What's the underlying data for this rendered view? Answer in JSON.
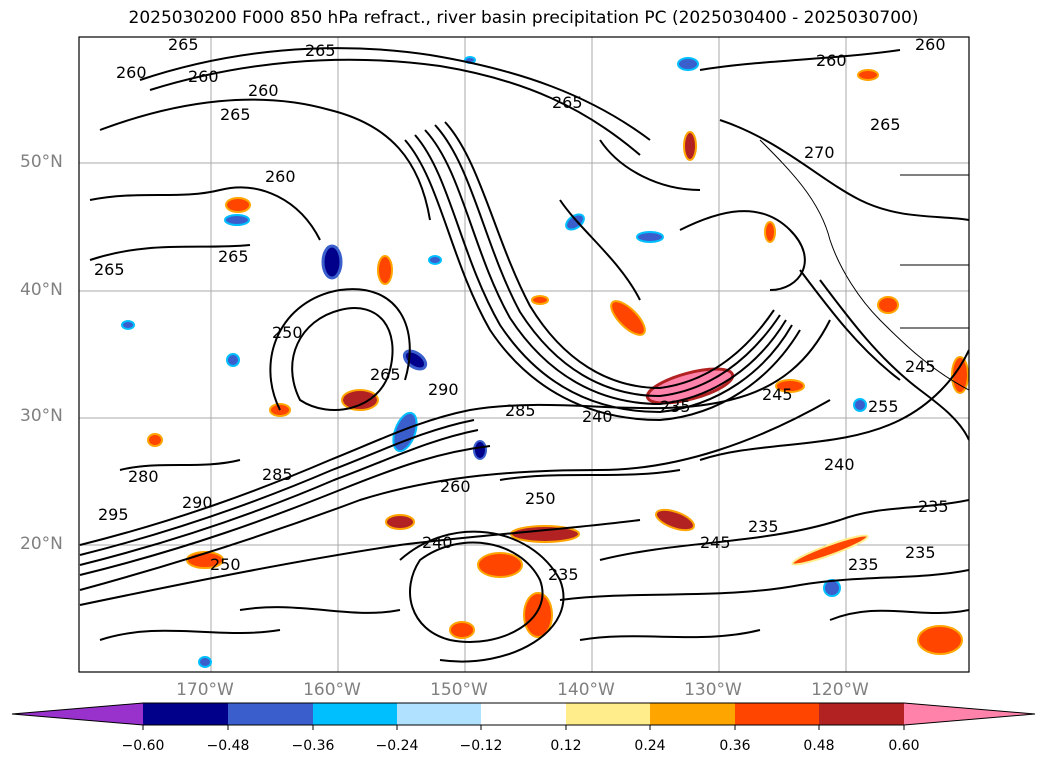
{
  "title": "2025030200 F000 850 hPa refract., river basin precipitation PC (2025030400 - 2025030700)",
  "lat_labels": [
    "50°N",
    "40°N",
    "30°N",
    "20°N"
  ],
  "lon_labels": [
    "170°W",
    "160°W",
    "150°W",
    "140°W",
    "130°W",
    "120°W"
  ],
  "contour_labels": [
    "265",
    "260",
    "260",
    "265",
    "265",
    "260",
    "265",
    "260",
    "260",
    "265",
    "270",
    "260",
    "265",
    "265",
    "250",
    "265",
    "290",
    "285",
    "240",
    "235",
    "245",
    "250",
    "260",
    "285",
    "280",
    "295",
    "290",
    "250",
    "240",
    "235",
    "235",
    "245",
    "235",
    "235",
    "235",
    "240",
    "245",
    "255"
  ],
  "colorbar": {
    "colors": [
      "#9932CC",
      "#00008B",
      "#3A5FCD",
      "#00BFFF",
      "#B0E2FF",
      "#FFFFFF",
      "#FFEC8B",
      "#FFA500",
      "#FF4500",
      "#B22222",
      "#FF82AB"
    ],
    "tick_labels": [
      "−0.60",
      "−0.48",
      "−0.36",
      "−0.24",
      "−0.12",
      "0.12",
      "0.24",
      "0.36",
      "0.48",
      "0.60"
    ]
  }
}
